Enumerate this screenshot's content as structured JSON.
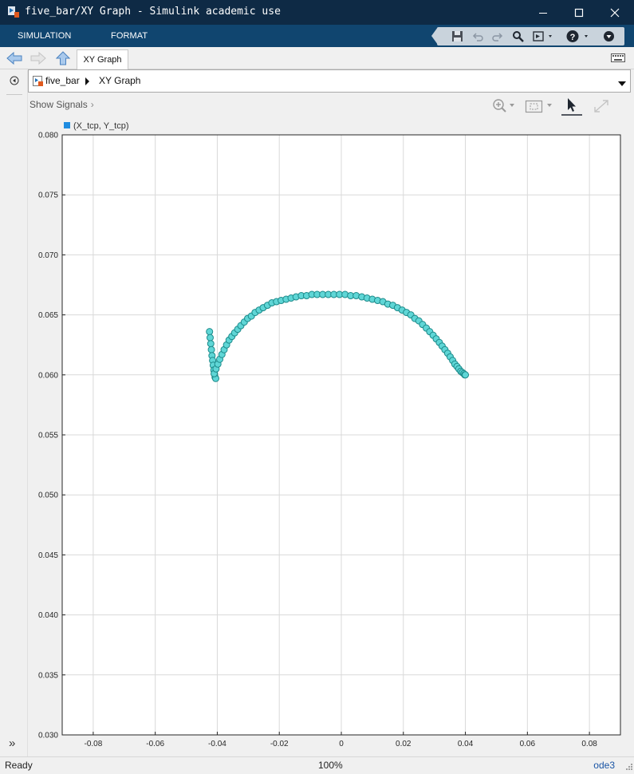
{
  "window": {
    "title": "five_bar/XY Graph - Simulink academic use"
  },
  "ribbon": {
    "tabs": [
      "SIMULATION",
      "FORMAT"
    ]
  },
  "nav": {
    "tab_label": "XY Graph"
  },
  "address": {
    "model": "five_bar",
    "block": "XY Graph"
  },
  "graph_toolbar": {
    "show_signals": "Show Signals"
  },
  "status": {
    "state": "Ready",
    "zoom": "100%",
    "solver": "ode3"
  },
  "colors": {
    "marker_fill": "#5fd6d6",
    "marker_edge": "#1c8a8a",
    "legend_swatch": "#1f8ce0",
    "titlebar": "#0e2a45",
    "ribbon": "#10456f"
  },
  "chart_data": {
    "type": "scatter",
    "legend": [
      "(X_tcp, Y_tcp)"
    ],
    "grid": true,
    "legend_placement": "top-left",
    "xlim": [
      -0.09,
      0.09
    ],
    "ylim": [
      0.03,
      0.08
    ],
    "x_ticks": [
      "-0.08",
      "-0.06",
      "-0.04",
      "-0.02",
      "0",
      "0.02",
      "0.04",
      "0.06",
      "0.08"
    ],
    "y_ticks": [
      "0.030",
      "0.035",
      "0.040",
      "0.045",
      "0.050",
      "0.055",
      "0.060",
      "0.065",
      "0.070",
      "0.075",
      "0.080"
    ],
    "x_tick_values": [
      -0.08,
      -0.06,
      -0.04,
      -0.02,
      0,
      0.02,
      0.04,
      0.06,
      0.08
    ],
    "y_tick_values": [
      0.03,
      0.035,
      0.04,
      0.045,
      0.05,
      0.055,
      0.06,
      0.065,
      0.07,
      0.075,
      0.08
    ],
    "series": [
      {
        "x": [
          -0.0425,
          -0.0423,
          -0.0421,
          -0.0419,
          -0.0417,
          -0.0415,
          -0.0413,
          -0.0411,
          -0.0409,
          -0.0407,
          -0.0405,
          -0.041,
          -0.0404,
          -0.0398,
          -0.0392,
          -0.0385,
          -0.0378,
          -0.037,
          -0.0362,
          -0.0353,
          -0.0344,
          -0.0334,
          -0.0324,
          -0.0313,
          -0.0302,
          -0.029,
          -0.0278,
          -0.0265,
          -0.0252,
          -0.0238,
          -0.0224,
          -0.0209,
          -0.0194,
          -0.0178,
          -0.0162,
          -0.0146,
          -0.0129,
          -0.0112,
          -0.0095,
          -0.0078,
          -0.006,
          -0.0042,
          -0.0024,
          -0.0006,
          0.0012,
          0.003,
          0.0048,
          0.0066,
          0.0083,
          0.01,
          0.0117,
          0.0134,
          0.015,
          0.0166,
          0.0181,
          0.0196,
          0.021,
          0.0224,
          0.0237,
          0.025,
          0.0262,
          0.0274,
          0.0285,
          0.0296,
          0.0306,
          0.0316,
          0.0325,
          0.0334,
          0.0343,
          0.0351,
          0.0359,
          0.0366,
          0.0373,
          0.0379,
          0.0385,
          0.039,
          0.0395,
          0.0398,
          0.04
        ],
        "y": [
          0.0636,
          0.0631,
          0.0626,
          0.0621,
          0.0616,
          0.0612,
          0.0608,
          0.0604,
          0.0601,
          0.0598,
          0.0597,
          0.0601,
          0.0605,
          0.0609,
          0.0613,
          0.0617,
          0.0621,
          0.0625,
          0.0629,
          0.0632,
          0.0635,
          0.0638,
          0.0641,
          0.0644,
          0.0647,
          0.0649,
          0.0652,
          0.0654,
          0.0656,
          0.0658,
          0.066,
          0.0661,
          0.0662,
          0.0663,
          0.0664,
          0.0665,
          0.0666,
          0.0666,
          0.0667,
          0.0667,
          0.0667,
          0.0667,
          0.0667,
          0.0667,
          0.0667,
          0.0666,
          0.0666,
          0.0665,
          0.0664,
          0.0663,
          0.0662,
          0.0661,
          0.0659,
          0.0658,
          0.0656,
          0.0654,
          0.0652,
          0.065,
          0.0647,
          0.0645,
          0.0642,
          0.0639,
          0.0636,
          0.0633,
          0.063,
          0.0627,
          0.0624,
          0.0621,
          0.0618,
          0.0615,
          0.0612,
          0.0609,
          0.0607,
          0.0605,
          0.0603,
          0.0602,
          0.0601,
          0.06,
          0.06
        ]
      }
    ]
  }
}
